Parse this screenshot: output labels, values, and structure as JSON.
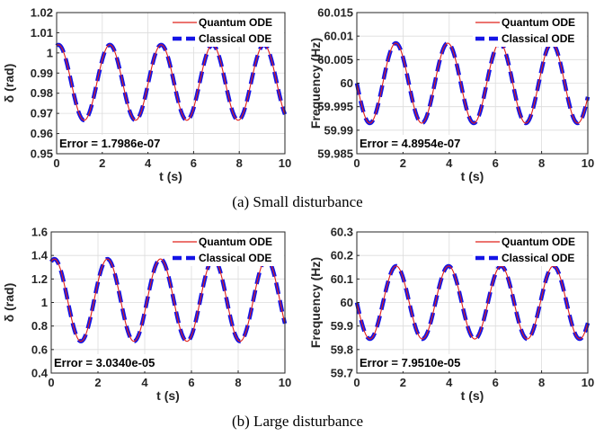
{
  "colors": {
    "quantum": "#e0201a",
    "classical": "#1414e6",
    "axis": "#262626",
    "grid": "#dcdcdc"
  },
  "captions": [
    "(a) Small disturbance",
    "(b) Large disturbance"
  ],
  "chart_data": [
    {
      "type": "line",
      "panel": "a-left",
      "grid": true,
      "legend": "top-right",
      "xlabel": "t (s)",
      "ylabel": "δ (rad)",
      "xlim": [
        0,
        10
      ],
      "ylim": [
        0.95,
        1.02
      ],
      "xticks": [
        0,
        2,
        4,
        6,
        8,
        10
      ],
      "yticks": [
        0.95,
        0.96,
        0.97,
        0.98,
        0.99,
        1,
        1.01,
        1.02
      ],
      "ytick_labels": [
        "0.95",
        "0.96",
        "0.97",
        "0.98",
        "0.99",
        "1",
        "1.01",
        "1.02"
      ],
      "oscillation": {
        "center": 0.9853,
        "amplitude": 0.0187,
        "period": 2.25,
        "phase": 1.35
      },
      "series": [
        {
          "name": "Quantum ODE",
          "x": [
            0,
            0.1,
            0.5,
            1.0,
            1.5,
            2.1,
            2.7,
            3.3,
            3.9,
            4.5,
            5.1,
            5.6,
            6.2,
            6.8,
            7.4,
            7.9,
            8.6,
            9.3,
            10
          ],
          "y": [
            1.005,
            1.004,
            0.985,
            0.967,
            0.985,
            1.004,
            0.985,
            0.967,
            0.985,
            1.003,
            0.985,
            0.968,
            0.985,
            1.002,
            0.985,
            0.969,
            1.002,
            0.985,
            0.971
          ]
        },
        {
          "name": "Classical ODE",
          "x": [
            0,
            0.1,
            0.5,
            1.0,
            1.5,
            2.1,
            2.7,
            3.3,
            3.9,
            4.5,
            5.1,
            5.6,
            6.2,
            6.8,
            7.4,
            7.9,
            8.6,
            9.3,
            10
          ],
          "y": [
            1.005,
            1.004,
            0.985,
            0.967,
            0.985,
            1.004,
            0.985,
            0.967,
            0.985,
            1.003,
            0.985,
            0.968,
            0.985,
            1.002,
            0.985,
            0.969,
            1.002,
            0.985,
            0.971
          ]
        }
      ],
      "annotation": "Error = 1.7986e-07"
    },
    {
      "type": "line",
      "panel": "a-right",
      "grid": true,
      "legend": "top-right",
      "xlabel": "t (s)",
      "ylabel": "Frequency (Hz)",
      "xlim": [
        0,
        10
      ],
      "ylim": [
        59.985,
        60.015
      ],
      "xticks": [
        0,
        2,
        4,
        6,
        8,
        10
      ],
      "yticks": [
        59.985,
        59.99,
        59.995,
        60,
        60.005,
        60.01,
        60.015
      ],
      "ytick_labels": [
        "59.985",
        "59.99",
        "59.995",
        "60",
        "60.005",
        "60.01",
        "60.015"
      ],
      "oscillation": {
        "center": 60.0,
        "amplitude": 0.0085,
        "period": 2.25,
        "phase": 0.0
      },
      "series": [
        {
          "name": "Quantum ODE",
          "x": [
            0,
            0.5,
            1.1,
            1.7,
            2.2,
            2.8,
            3.4,
            3.9,
            4.5,
            5.1,
            5.6,
            6.2,
            6.8,
            7.3,
            7.9,
            8.5,
            9.0,
            9.6,
            10
          ],
          "y": [
            60.0,
            59.992,
            60.0,
            60.0085,
            60.0,
            59.992,
            60.0,
            60.0085,
            60.0,
            59.992,
            60.0,
            60.008,
            60.0,
            59.992,
            60.0,
            60.008,
            60.0,
            59.993,
            60.004
          ]
        },
        {
          "name": "Classical ODE",
          "x": [
            0,
            0.5,
            1.1,
            1.7,
            2.2,
            2.8,
            3.4,
            3.9,
            4.5,
            5.1,
            5.6,
            6.2,
            6.8,
            7.3,
            7.9,
            8.5,
            9.0,
            9.6,
            10
          ],
          "y": [
            60.0,
            59.992,
            60.0,
            60.0085,
            60.0,
            59.992,
            60.0,
            60.0085,
            60.0,
            59.992,
            60.0,
            60.008,
            60.0,
            59.992,
            60.0,
            60.008,
            60.0,
            59.993,
            60.004
          ]
        }
      ],
      "annotation": "Error = 4.8954e-07"
    },
    {
      "type": "line",
      "panel": "b-left",
      "grid": true,
      "legend": "top-right",
      "xlabel": "t (s)",
      "ylabel": "δ (rad)",
      "xlim": [
        0,
        10
      ],
      "ylim": [
        0.4,
        1.6
      ],
      "xticks": [
        0,
        2,
        4,
        6,
        8,
        10
      ],
      "yticks": [
        0.4,
        0.6,
        0.8,
        1,
        1.2,
        1.4,
        1.6
      ],
      "ytick_labels": [
        "0.4",
        "0.6",
        "0.8",
        "1",
        "1.2",
        "1.4",
        "1.6"
      ],
      "oscillation": {
        "center": 1.02,
        "amplitude": 0.35,
        "period": 2.27,
        "phase": 1.2
      },
      "series": [
        {
          "name": "Quantum ODE",
          "x": [
            0,
            0.1,
            0.6,
            1.1,
            1.7,
            2.3,
            2.9,
            3.4,
            4.0,
            4.6,
            5.2,
            5.7,
            6.3,
            6.8,
            7.4,
            8.0,
            8.6,
            9.1,
            10
          ],
          "y": [
            1.38,
            1.37,
            1.02,
            0.67,
            1.02,
            1.36,
            1.02,
            0.68,
            1.02,
            1.35,
            1.02,
            0.69,
            1.02,
            1.33,
            1.02,
            0.71,
            1.02,
            1.31,
            0.76
          ]
        },
        {
          "name": "Classical ODE",
          "x": [
            0,
            0.1,
            0.6,
            1.1,
            1.7,
            2.3,
            2.9,
            3.4,
            4.0,
            4.6,
            5.2,
            5.7,
            6.3,
            6.8,
            7.4,
            8.0,
            8.6,
            9.1,
            10
          ],
          "y": [
            1.38,
            1.37,
            1.02,
            0.67,
            1.02,
            1.36,
            1.02,
            0.68,
            1.02,
            1.35,
            1.02,
            0.69,
            1.02,
            1.33,
            1.02,
            0.71,
            1.02,
            1.31,
            0.76
          ]
        }
      ],
      "annotation": "Error = 3.0340e-05"
    },
    {
      "type": "line",
      "panel": "b-right",
      "grid": true,
      "legend": "top-right",
      "xlabel": "t (s)",
      "ylabel": "Frequency (Hz)",
      "xlim": [
        0,
        10
      ],
      "ylim": [
        59.7,
        60.3
      ],
      "xticks": [
        0,
        2,
        4,
        6,
        8,
        10
      ],
      "yticks": [
        59.7,
        59.8,
        59.9,
        60,
        60.1,
        60.2,
        60.3
      ],
      "ytick_labels": [
        "59.7",
        "59.8",
        "59.9",
        "60",
        "60.1",
        "60.2",
        "60.3"
      ],
      "oscillation": {
        "center": 60.0,
        "amplitude": 0.155,
        "period": 2.27,
        "phase": 0.0
      },
      "series": [
        {
          "name": "Quantum ODE",
          "x": [
            0,
            0.6,
            1.1,
            1.7,
            2.3,
            2.8,
            3.4,
            4.0,
            4.5,
            5.1,
            5.7,
            6.2,
            6.8,
            7.4,
            7.9,
            8.5,
            9.1,
            9.6,
            10
          ],
          "y": [
            60.0,
            59.845,
            60.0,
            60.155,
            60.0,
            59.847,
            60.0,
            60.15,
            60.0,
            59.85,
            60.0,
            60.145,
            60.0,
            59.855,
            60.0,
            60.14,
            60.0,
            59.86,
            59.94
          ]
        },
        {
          "name": "Classical ODE",
          "x": [
            0,
            0.6,
            1.1,
            1.7,
            2.3,
            2.8,
            3.4,
            4.0,
            4.5,
            5.1,
            5.7,
            6.2,
            6.8,
            7.4,
            7.9,
            8.5,
            9.1,
            9.6,
            10
          ],
          "y": [
            60.0,
            59.845,
            60.0,
            60.155,
            60.0,
            59.847,
            60.0,
            60.15,
            60.0,
            59.85,
            60.0,
            60.145,
            60.0,
            59.855,
            60.0,
            60.14,
            60.0,
            59.86,
            59.94
          ]
        }
      ],
      "annotation": "Error = 7.9510e-05"
    }
  ]
}
